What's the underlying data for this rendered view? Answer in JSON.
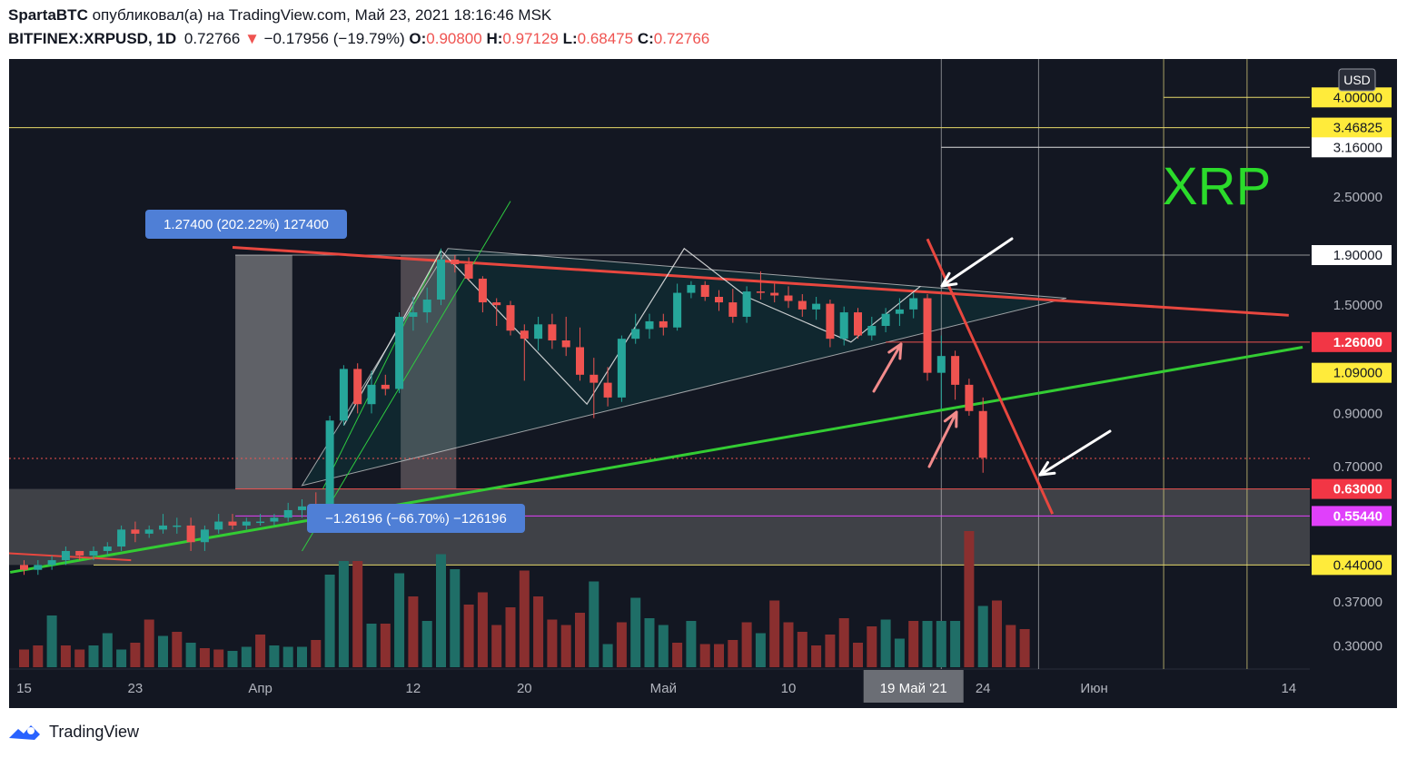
{
  "header": {
    "author": "SpartaBTC",
    "published_text": "опубликовал(а) на TradingView.com, Май 23, 2021 18:16:46 MSK",
    "symbol": "BITFINEX:XRPUSD, 1D",
    "last": "0.72766",
    "change_arrow": "▼",
    "change": "−0.17956 (−19.79%)",
    "o_label": "O:",
    "o_value": "0.90800",
    "h_label": "H:",
    "h_value": "0.97129",
    "l_label": "L:",
    "l_value": "0.68475",
    "c_label": "C:",
    "c_value": "0.72766"
  },
  "footer": {
    "brand": "TradingView"
  },
  "chart_data": {
    "type": "candlestick",
    "symbol": "BITFINEX:XRPUSD",
    "interval": "1D",
    "currency": "USD",
    "scale": "log",
    "watermark": "XRP",
    "x_ticks": [
      {
        "day": 0,
        "label": "15"
      },
      {
        "day": 8,
        "label": "23"
      },
      {
        "day": 17,
        "label": "Апр"
      },
      {
        "day": 28,
        "label": "12"
      },
      {
        "day": 36,
        "label": "20"
      },
      {
        "day": 46,
        "label": "Май"
      },
      {
        "day": 55,
        "label": "10"
      },
      {
        "day": 64,
        "label": "19 Май '21"
      },
      {
        "day": 69,
        "label": "24"
      },
      {
        "day": 77,
        "label": "Июн"
      },
      {
        "day": 91,
        "label": "14"
      }
    ],
    "y_ticks": [
      2.5,
      1.5,
      0.9,
      0.7,
      0.37,
      0.3
    ],
    "y_range": [
      0.27,
      4.1
    ],
    "price_labels": [
      {
        "price": 4.0,
        "text": "4.00000",
        "style": "yellow"
      },
      {
        "price": 3.46825,
        "text": "3.46825",
        "style": "yellow"
      },
      {
        "price": 3.16,
        "text": "3.16000",
        "style": "white"
      },
      {
        "price": 1.9,
        "text": "1.90000",
        "style": "white"
      },
      {
        "price": 1.26,
        "text": "1.26000",
        "style": "red"
      },
      {
        "price": 1.09,
        "text": "1.09000",
        "style": "yellow"
      },
      {
        "price": 0.63,
        "text": "0.63000",
        "style": "red"
      },
      {
        "price": 0.5544,
        "text": "0.55440",
        "style": "magenta"
      },
      {
        "price": 0.44,
        "text": "0.44000",
        "style": "yellow"
      }
    ],
    "currency_label": "USD",
    "measure_labels": [
      {
        "text": "1.27400 (202.22%) 127400",
        "color": "#4f7fd6"
      },
      {
        "text": "−1.26196 (−66.70%) −126196",
        "color": "#4f7fd6"
      }
    ],
    "candles": [
      [
        0.44,
        0.45,
        0.42,
        0.43
      ],
      [
        0.43,
        0.45,
        0.42,
        0.44
      ],
      [
        0.44,
        0.46,
        0.43,
        0.45
      ],
      [
        0.45,
        0.48,
        0.44,
        0.47
      ],
      [
        0.47,
        0.47,
        0.45,
        0.46
      ],
      [
        0.46,
        0.48,
        0.45,
        0.47
      ],
      [
        0.47,
        0.49,
        0.46,
        0.48
      ],
      [
        0.48,
        0.53,
        0.47,
        0.52
      ],
      [
        0.52,
        0.54,
        0.49,
        0.51
      ],
      [
        0.51,
        0.53,
        0.5,
        0.52
      ],
      [
        0.52,
        0.56,
        0.51,
        0.53
      ],
      [
        0.53,
        0.55,
        0.51,
        0.53
      ],
      [
        0.53,
        0.55,
        0.47,
        0.49
      ],
      [
        0.49,
        0.53,
        0.47,
        0.52
      ],
      [
        0.52,
        0.56,
        0.51,
        0.54
      ],
      [
        0.54,
        0.56,
        0.52,
        0.53
      ],
      [
        0.53,
        0.55,
        0.52,
        0.54
      ],
      [
        0.54,
        0.56,
        0.53,
        0.54
      ],
      [
        0.54,
        0.56,
        0.53,
        0.55
      ],
      [
        0.55,
        0.59,
        0.54,
        0.57
      ],
      [
        0.57,
        0.6,
        0.55,
        0.58
      ],
      [
        0.58,
        0.62,
        0.56,
        0.57
      ],
      [
        0.57,
        0.89,
        0.56,
        0.87
      ],
      [
        0.87,
        1.13,
        0.85,
        1.11
      ],
      [
        1.11,
        1.14,
        0.9,
        0.94
      ],
      [
        0.94,
        1.1,
        0.9,
        1.03
      ],
      [
        1.03,
        1.08,
        0.98,
        1.01
      ],
      [
        1.01,
        1.45,
        0.99,
        1.42
      ],
      [
        1.42,
        1.56,
        1.33,
        1.45
      ],
      [
        1.45,
        1.63,
        1.38,
        1.54
      ],
      [
        1.54,
        1.96,
        1.5,
        1.86
      ],
      [
        1.86,
        1.9,
        1.75,
        1.82
      ],
      [
        1.82,
        1.88,
        1.68,
        1.7
      ],
      [
        1.7,
        1.72,
        1.45,
        1.52
      ],
      [
        1.52,
        1.55,
        1.36,
        1.5
      ],
      [
        1.5,
        1.53,
        1.3,
        1.33
      ],
      [
        1.33,
        1.37,
        1.05,
        1.28
      ],
      [
        1.28,
        1.42,
        1.21,
        1.37
      ],
      [
        1.37,
        1.44,
        1.22,
        1.27
      ],
      [
        1.27,
        1.42,
        1.18,
        1.23
      ],
      [
        1.23,
        1.35,
        1.05,
        1.08
      ],
      [
        1.08,
        1.17,
        0.88,
        1.04
      ],
      [
        1.04,
        1.12,
        0.93,
        0.97
      ],
      [
        0.97,
        1.3,
        0.95,
        1.28
      ],
      [
        1.28,
        1.44,
        1.25,
        1.34
      ],
      [
        1.34,
        1.44,
        1.28,
        1.39
      ],
      [
        1.39,
        1.44,
        1.3,
        1.35
      ],
      [
        1.35,
        1.66,
        1.33,
        1.59
      ],
      [
        1.59,
        1.68,
        1.55,
        1.65
      ],
      [
        1.65,
        1.68,
        1.53,
        1.56
      ],
      [
        1.56,
        1.61,
        1.46,
        1.52
      ],
      [
        1.52,
        1.62,
        1.38,
        1.42
      ],
      [
        1.42,
        1.64,
        1.38,
        1.6
      ],
      [
        1.6,
        1.76,
        1.54,
        1.59
      ],
      [
        1.59,
        1.66,
        1.52,
        1.57
      ],
      [
        1.57,
        1.64,
        1.48,
        1.53
      ],
      [
        1.53,
        1.58,
        1.42,
        1.47
      ],
      [
        1.47,
        1.56,
        1.4,
        1.51
      ],
      [
        1.51,
        1.54,
        1.23,
        1.28
      ],
      [
        1.28,
        1.49,
        1.24,
        1.45
      ],
      [
        1.45,
        1.48,
        1.28,
        1.3
      ],
      [
        1.3,
        1.42,
        1.27,
        1.36
      ],
      [
        1.36,
        1.48,
        1.32,
        1.44
      ],
      [
        1.44,
        1.55,
        1.36,
        1.47
      ],
      [
        1.47,
        1.59,
        1.41,
        1.55
      ],
      [
        1.55,
        1.58,
        1.05,
        1.09
      ],
      [
        1.09,
        1.3,
        0.92,
        1.18
      ],
      [
        1.18,
        1.21,
        0.96,
        1.03
      ],
      [
        1.03,
        1.06,
        0.89,
        0.91
      ],
      [
        0.91,
        0.97,
        0.68,
        0.73
      ]
    ],
    "volume": [
      [
        0.13,
        0
      ],
      [
        0.16,
        0
      ],
      [
        0.38,
        1
      ],
      [
        0.16,
        0
      ],
      [
        0.13,
        0
      ],
      [
        0.16,
        1
      ],
      [
        0.25,
        1
      ],
      [
        0.13,
        1
      ],
      [
        0.18,
        0
      ],
      [
        0.35,
        0
      ],
      [
        0.23,
        1
      ],
      [
        0.26,
        0
      ],
      [
        0.18,
        1
      ],
      [
        0.14,
        0
      ],
      [
        0.13,
        0
      ],
      [
        0.12,
        1
      ],
      [
        0.15,
        1
      ],
      [
        0.24,
        0
      ],
      [
        0.16,
        1
      ],
      [
        0.15,
        1
      ],
      [
        0.15,
        1
      ],
      [
        0.2,
        0
      ],
      [
        0.68,
        1
      ],
      [
        0.78,
        1
      ],
      [
        0.78,
        0
      ],
      [
        0.32,
        1
      ],
      [
        0.32,
        0
      ],
      [
        0.69,
        1
      ],
      [
        0.52,
        0
      ],
      [
        0.34,
        1
      ],
      [
        0.83,
        1
      ],
      [
        0.72,
        1
      ],
      [
        0.46,
        0
      ],
      [
        0.55,
        0
      ],
      [
        0.31,
        0
      ],
      [
        0.44,
        0
      ],
      [
        0.71,
        0
      ],
      [
        0.52,
        0
      ],
      [
        0.35,
        0
      ],
      [
        0.31,
        0
      ],
      [
        0.4,
        0
      ],
      [
        0.63,
        1
      ],
      [
        0.17,
        1
      ],
      [
        0.33,
        0
      ],
      [
        0.51,
        1
      ],
      [
        0.36,
        1
      ],
      [
        0.31,
        1
      ],
      [
        0.18,
        0
      ],
      [
        0.34,
        1
      ],
      [
        0.17,
        0
      ],
      [
        0.17,
        0
      ],
      [
        0.2,
        0
      ],
      [
        0.33,
        0
      ],
      [
        0.25,
        1
      ],
      [
        0.49,
        0
      ],
      [
        0.33,
        0
      ],
      [
        0.26,
        0
      ],
      [
        0.16,
        0
      ],
      [
        0.24,
        0
      ],
      [
        0.36,
        0
      ],
      [
        0.18,
        0
      ],
      [
        0.3,
        0
      ],
      [
        0.35,
        1
      ],
      [
        0.21,
        1
      ],
      [
        0.34,
        0
      ],
      [
        0.34,
        1
      ],
      [
        0.34,
        1
      ],
      [
        0.34,
        1
      ],
      [
        1.0,
        0
      ],
      [
        0.45,
        1
      ]
    ],
    "volume_tail": [
      [
        0.49,
        0
      ],
      [
        0.31,
        0
      ],
      [
        0.28,
        0
      ]
    ],
    "trendlines": [
      {
        "name": "descending resistance (red)",
        "points": [
          [
            15,
            1.97
          ],
          [
            91,
            1.43
          ]
        ]
      },
      {
        "name": "ascending support (green)",
        "points": [
          [
            -1,
            0.425
          ],
          [
            92,
            1.23
          ]
        ]
      },
      {
        "name": "breakdown line (red)",
        "points": [
          [
            65,
            2.05
          ],
          [
            74,
            0.56
          ]
        ]
      }
    ]
  }
}
